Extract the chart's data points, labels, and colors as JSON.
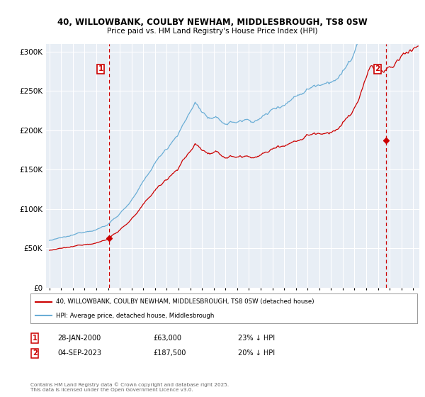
{
  "title_line1": "40, WILLOWBANK, COULBY NEWHAM, MIDDLESBROUGH, TS8 0SW",
  "title_line2": "Price paid vs. HM Land Registry's House Price Index (HPI)",
  "ylabel_ticks": [
    "£0",
    "£50K",
    "£100K",
    "£150K",
    "£200K",
    "£250K",
    "£300K"
  ],
  "ytick_values": [
    0,
    50000,
    100000,
    150000,
    200000,
    250000,
    300000
  ],
  "ylim": [
    0,
    310000
  ],
  "xlim_start": 1994.7,
  "xlim_end": 2026.5,
  "hpi_color": "#6baed6",
  "price_color": "#cc0000",
  "vline_color": "#cc0000",
  "background_color": "#e8eef5",
  "grid_color": "#ffffff",
  "sale1_x": 2000.077,
  "sale1_y": 63000,
  "sale2_x": 2023.674,
  "sale2_y": 187500,
  "legend_label1": "40, WILLOWBANK, COULBY NEWHAM, MIDDLESBROUGH, TS8 0SW (detached house)",
  "legend_label2": "HPI: Average price, detached house, Middlesbrough",
  "note1_date": "28-JAN-2000",
  "note1_price": "£63,000",
  "note1_hpi": "23% ↓ HPI",
  "note2_date": "04-SEP-2023",
  "note2_price": "£187,500",
  "note2_hpi": "20% ↓ HPI",
  "footer": "Contains HM Land Registry data © Crown copyright and database right 2025.\nThis data is licensed under the Open Government Licence v3.0."
}
